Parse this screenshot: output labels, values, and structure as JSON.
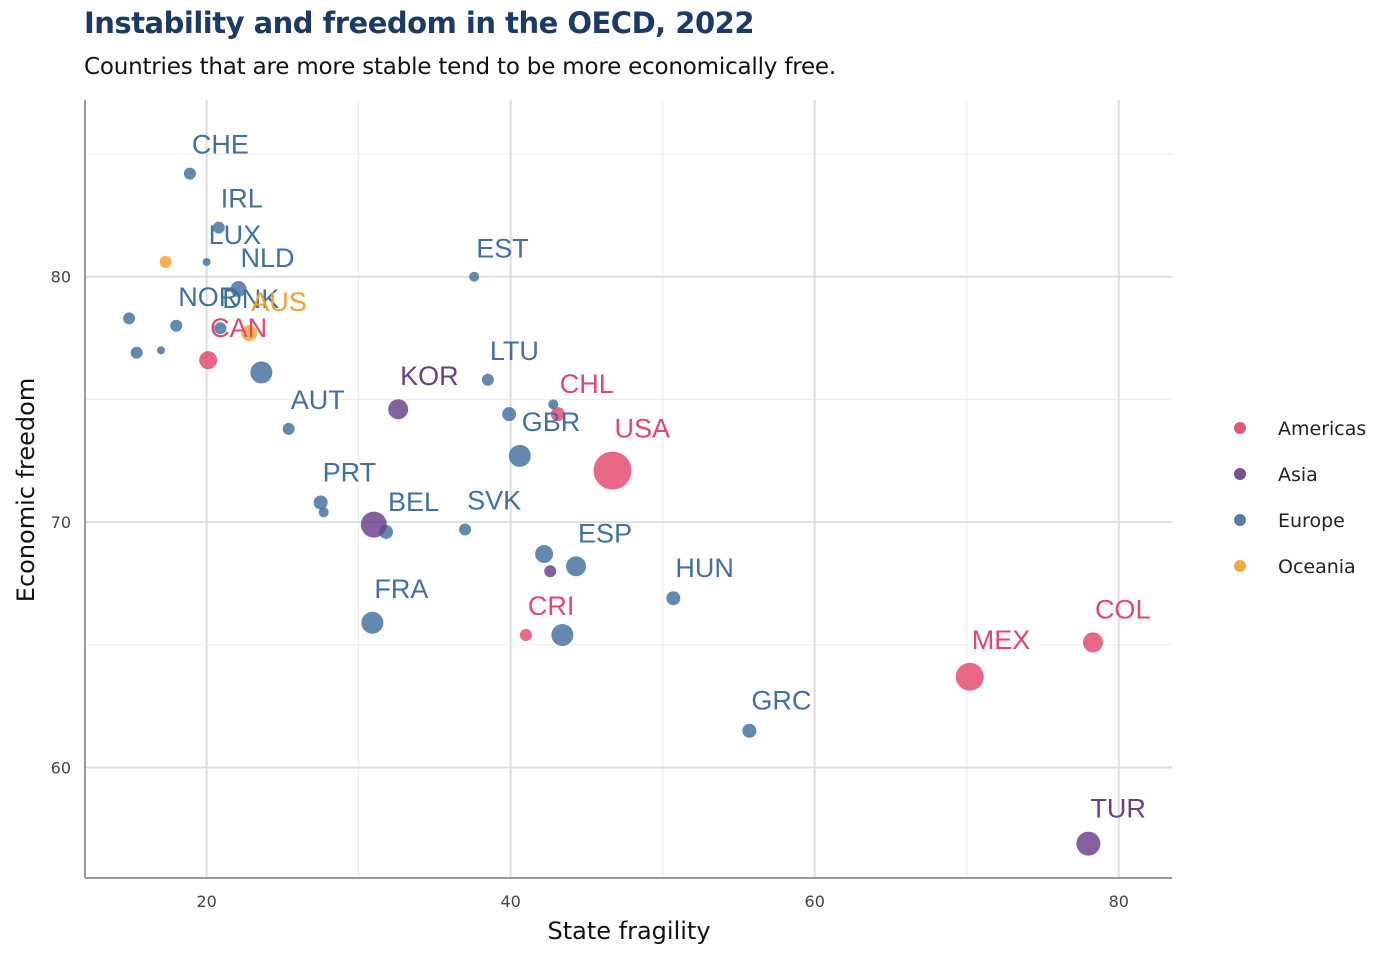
{
  "chart_data": {
    "type": "scatter",
    "title": "Instability and freedom in the OECD, 2022",
    "subtitle": "Countries that are more stable tend to be more economically free.",
    "xlabel": "State fragility",
    "ylabel": "Economic freedom",
    "xlim": [
      12,
      83.5
    ],
    "ylim": [
      55.5,
      87.2
    ],
    "xticks": [
      20,
      40,
      60,
      80
    ],
    "yticks": [
      60,
      70,
      80
    ],
    "grid": true,
    "legend_position": "right",
    "legend": [
      {
        "name": "Americas",
        "color": "#e3466b"
      },
      {
        "name": "Asia",
        "color": "#6a3d8a"
      },
      {
        "name": "Europe",
        "color": "#416fa0"
      },
      {
        "name": "Oceania",
        "color": "#f3a02b"
      }
    ],
    "points": [
      {
        "label": "CHE",
        "x": 18.9,
        "y": 84.2,
        "region": "Europe",
        "r": 6
      },
      {
        "label": "IRL",
        "x": 20.8,
        "y": 82.0,
        "region": "Europe",
        "r": 6
      },
      {
        "label": "LUX",
        "x": 20.0,
        "y": 80.6,
        "region": "Europe",
        "r": 4
      },
      {
        "label": "NLD",
        "x": 22.1,
        "y": 79.5,
        "region": "Europe",
        "r": 8
      },
      {
        "label": "DNK",
        "x": 20.9,
        "y": 77.9,
        "region": "Europe",
        "r": 6
      },
      {
        "label": "AUS",
        "x": 22.8,
        "y": 77.7,
        "region": "Oceania",
        "r": 8
      },
      {
        "label": "NOR",
        "x": 18.0,
        "y": 78.0,
        "region": "Europe",
        "r": 6
      },
      {
        "label": "CAN",
        "x": 20.1,
        "y": 76.6,
        "region": "Americas",
        "r": 9
      },
      {
        "label": "",
        "x": 14.9,
        "y": 78.3,
        "region": "Europe",
        "r": 6
      },
      {
        "label": "",
        "x": 15.4,
        "y": 76.9,
        "region": "Europe",
        "r": 6
      },
      {
        "label": "",
        "x": 17.0,
        "y": 77.0,
        "region": "Europe",
        "r": 4
      },
      {
        "label": "",
        "x": 17.3,
        "y": 80.6,
        "region": "Oceania",
        "r": 6
      },
      {
        "label": "",
        "x": 23.6,
        "y": 76.1,
        "region": "Europe",
        "r": 11
      },
      {
        "label": "AUT",
        "x": 25.4,
        "y": 73.8,
        "region": "Europe",
        "r": 6
      },
      {
        "label": "PRT",
        "x": 27.5,
        "y": 70.8,
        "region": "Europe",
        "r": 7
      },
      {
        "label": "",
        "x": 27.7,
        "y": 70.4,
        "region": "Europe",
        "r": 5
      },
      {
        "label": "BEL",
        "x": 31.8,
        "y": 69.6,
        "region": "Europe",
        "r": 7
      },
      {
        "label": "",
        "x": 31.0,
        "y": 69.9,
        "region": "Asia",
        "r": 13
      },
      {
        "label": "FRA",
        "x": 30.9,
        "y": 65.9,
        "region": "Europe",
        "r": 11
      },
      {
        "label": "KOR",
        "x": 32.6,
        "y": 74.6,
        "region": "Asia",
        "r": 10
      },
      {
        "label": "EST",
        "x": 37.6,
        "y": 80.0,
        "region": "Europe",
        "r": 5
      },
      {
        "label": "LTU",
        "x": 38.5,
        "y": 75.8,
        "region": "Europe",
        "r": 6
      },
      {
        "label": "GBR",
        "x": 40.6,
        "y": 72.7,
        "region": "Europe",
        "r": 11
      },
      {
        "label": "",
        "x": 39.9,
        "y": 74.4,
        "region": "Europe",
        "r": 7
      },
      {
        "label": "SVK",
        "x": 37.0,
        "y": 69.7,
        "region": "Europe",
        "r": 6
      },
      {
        "label": "CHL",
        "x": 43.1,
        "y": 74.4,
        "region": "Americas",
        "r": 7
      },
      {
        "label": "",
        "x": 42.8,
        "y": 74.8,
        "region": "Europe",
        "r": 5
      },
      {
        "label": "USA",
        "x": 46.7,
        "y": 72.1,
        "region": "Americas",
        "r": 19
      },
      {
        "label": "ESP",
        "x": 44.3,
        "y": 68.2,
        "region": "Europe",
        "r": 10
      },
      {
        "label": "",
        "x": 42.2,
        "y": 68.7,
        "region": "Europe",
        "r": 9
      },
      {
        "label": "",
        "x": 42.6,
        "y": 68.0,
        "region": "Asia",
        "r": 6
      },
      {
        "label": "CRI",
        "x": 41.0,
        "y": 65.4,
        "region": "Americas",
        "r": 6
      },
      {
        "label": "",
        "x": 43.4,
        "y": 65.4,
        "region": "Europe",
        "r": 11
      },
      {
        "label": "HUN",
        "x": 50.7,
        "y": 66.9,
        "region": "Europe",
        "r": 7
      },
      {
        "label": "GRC",
        "x": 55.7,
        "y": 61.5,
        "region": "Europe",
        "r": 7
      },
      {
        "label": "MEX",
        "x": 70.2,
        "y": 63.7,
        "region": "Americas",
        "r": 14
      },
      {
        "label": "COL",
        "x": 78.3,
        "y": 65.1,
        "region": "Americas",
        "r": 10
      },
      {
        "label": "TUR",
        "x": 78.0,
        "y": 56.9,
        "region": "Asia",
        "r": 12
      }
    ]
  }
}
